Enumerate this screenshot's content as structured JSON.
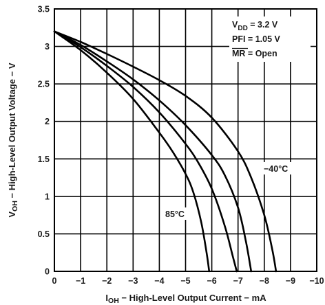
{
  "chart_data": {
    "type": "line",
    "xlabel_parts": {
      "sym": "I",
      "sub": "OH",
      "rest": " − High-Level Output Current − mA"
    },
    "ylabel_parts": {
      "sym": "V",
      "sub": "OH",
      "rest": " − High-Level Output Voltage − V"
    },
    "xlim": [
      0,
      -10
    ],
    "ylim": [
      0,
      3.5
    ],
    "x_ticks": [
      0,
      -1,
      -2,
      -3,
      -4,
      -5,
      -6,
      -7,
      -8,
      -9,
      -10
    ],
    "x_tick_labels": [
      "0",
      "−1",
      "−2",
      "−3",
      "−4",
      "−5",
      "−6",
      "−7",
      "−8",
      "−9",
      "−10"
    ],
    "y_ticks": [
      0,
      0.5,
      1,
      1.5,
      2,
      2.5,
      3,
      3.5
    ],
    "y_tick_labels": [
      "0",
      "0.5",
      "1",
      "1.5",
      "2",
      "2.5",
      "3",
      "3.5"
    ],
    "grid": true,
    "conditions": {
      "vdd": {
        "sym": "V",
        "sub": "DD",
        "rest": " = 3.2 V"
      },
      "pfi": "PFI = 1.05 V",
      "mr_sym": "MR",
      "mr_rest": " = Open"
    },
    "annotations": {
      "hot": "85°C",
      "cold": "−40°C"
    },
    "series": [
      {
        "x": [
          0,
          -1,
          -2,
          -3,
          -4,
          -4.5,
          -5,
          -5.3,
          -5.6,
          -5.8,
          -5.9
        ],
        "y": [
          3.2,
          2.95,
          2.65,
          2.3,
          1.85,
          1.6,
          1.3,
          1.05,
          0.65,
          0.25,
          0
        ]
      },
      {
        "x": [
          0,
          -1,
          -2,
          -3,
          -4,
          -5,
          -5.5,
          -6,
          -6.5,
          -6.8,
          -6.95
        ],
        "y": [
          3.2,
          2.99,
          2.74,
          2.46,
          2.12,
          1.7,
          1.44,
          1.1,
          0.6,
          0.2,
          0
        ]
      },
      {
        "x": [
          0,
          -1,
          -2,
          -3,
          -4,
          -5,
          -6,
          -6.5,
          -7,
          -7.3,
          -7.5
        ],
        "y": [
          3.2,
          3.02,
          2.8,
          2.56,
          2.28,
          1.95,
          1.55,
          1.28,
          0.85,
          0.4,
          0
        ]
      },
      {
        "x": [
          0,
          -1,
          -2,
          -3,
          -4,
          -5,
          -6,
          -7,
          -7.5,
          -8,
          -8.3,
          -8.45
        ],
        "y": [
          3.2,
          3.06,
          2.9,
          2.73,
          2.55,
          2.34,
          2.05,
          1.6,
          1.25,
          0.75,
          0.3,
          0
        ]
      }
    ]
  }
}
